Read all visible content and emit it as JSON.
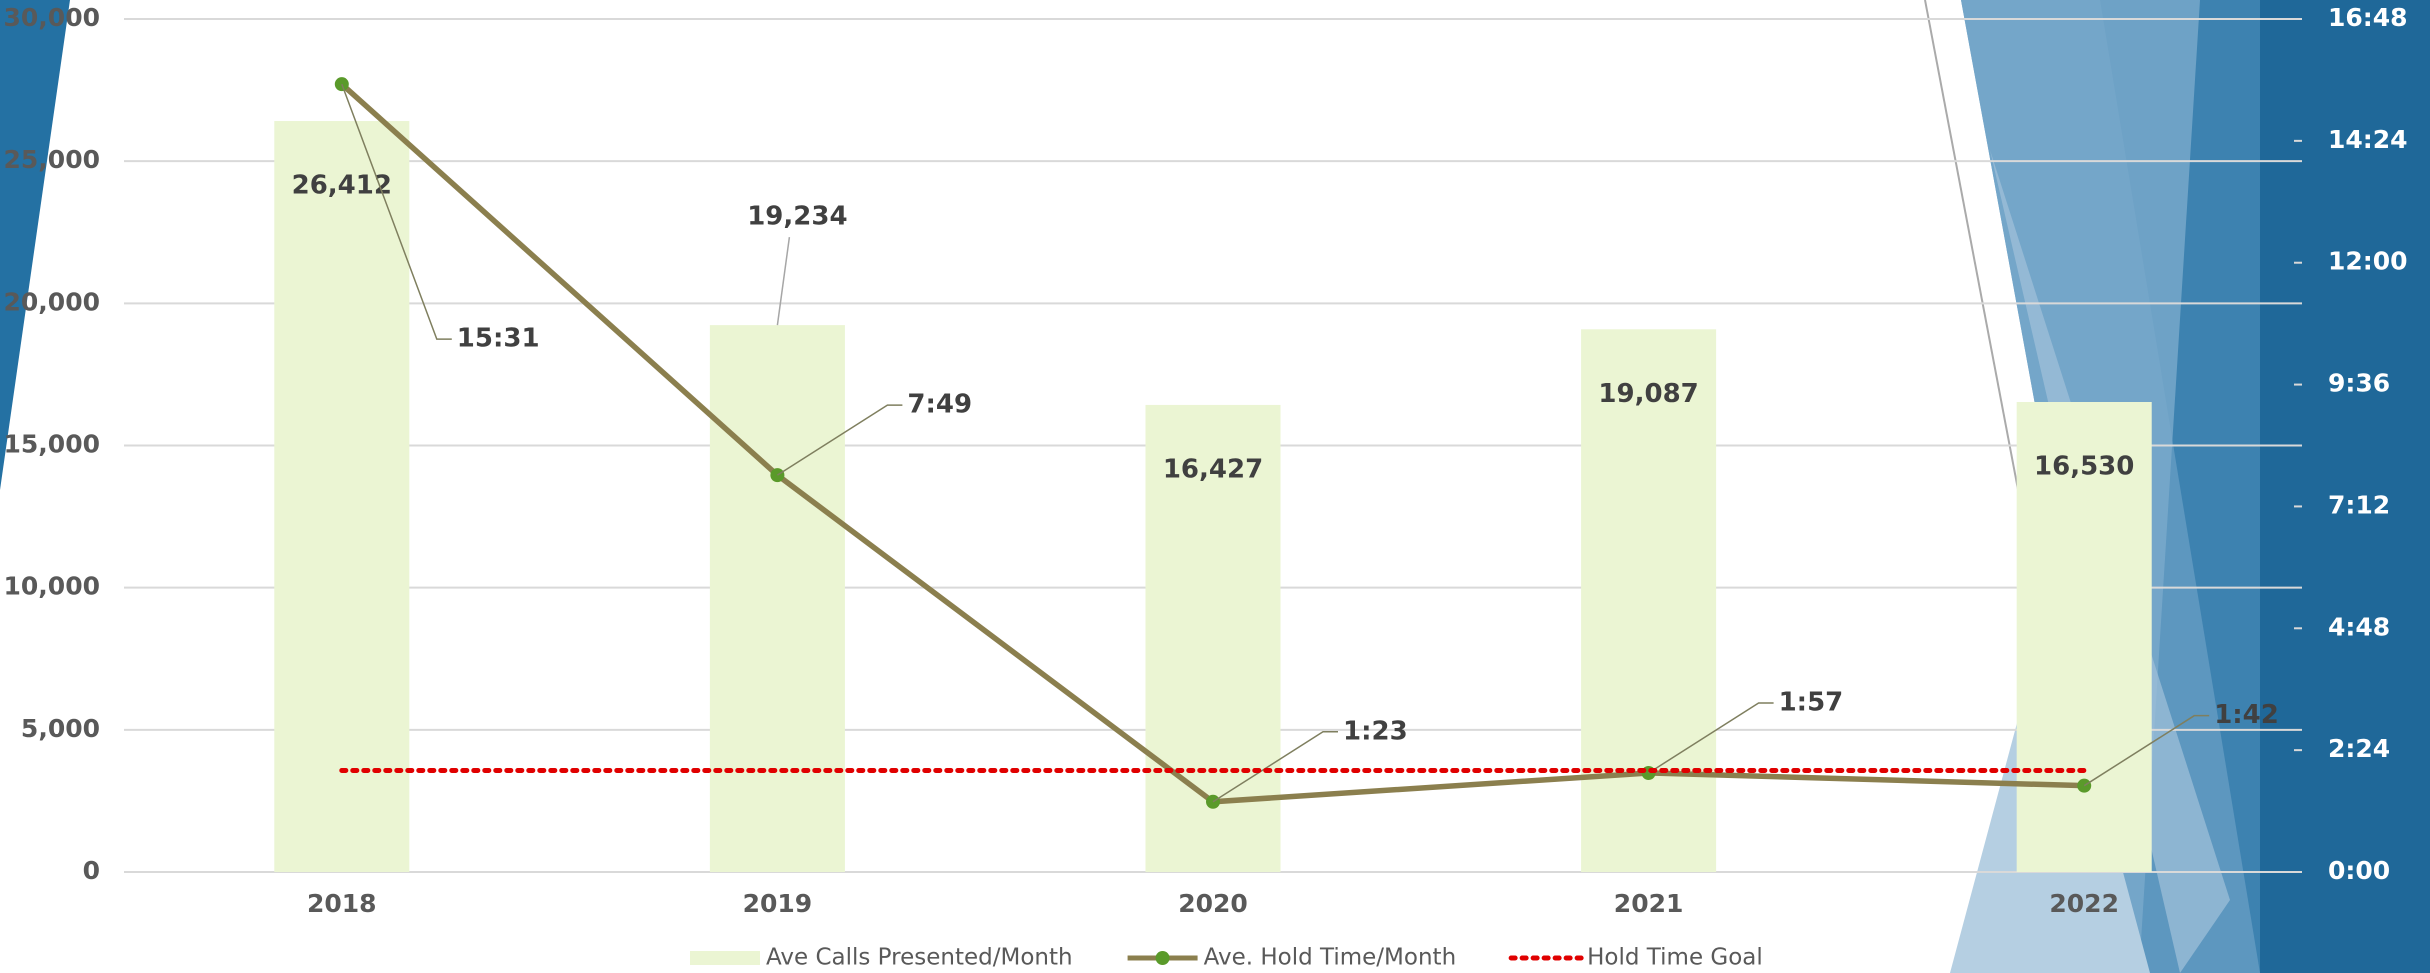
{
  "chart_data": {
    "type": "combo",
    "categories": [
      "2018",
      "2019",
      "2020",
      "2021",
      "2022"
    ],
    "series": [
      {
        "name": "Ave Calls Presented/Month",
        "type": "bar",
        "color": "#ebf5d3",
        "values": [
          26412,
          19234,
          16427,
          19087,
          16530
        ],
        "value_labels": [
          "26,412",
          "19,234",
          "16,427",
          "19,087",
          "16,530"
        ]
      },
      {
        "name": "Ave. Hold Time/Month",
        "type": "line",
        "axis": "y2",
        "color": "#8b7f4e",
        "marker_color": "#5a9a2a",
        "values": [
          931,
          469,
          83,
          117,
          102
        ],
        "value_labels": [
          "15:31",
          "7:49",
          "1:23",
          "1:57",
          "1:42"
        ]
      },
      {
        "name": "Hold Time Goal",
        "type": "line",
        "axis": "y2",
        "color": "#e00000",
        "dash": "dotted",
        "values": [
          120,
          120,
          120,
          120,
          120
        ]
      }
    ],
    "ylim": [
      0,
      30000
    ],
    "yticks": [
      0,
      {
        "value": 5000,
        "label": "5,000"
      },
      {
        "value": 10000,
        "label": "10,000"
      },
      {
        "value": 15000,
        "label": "15,000"
      },
      {
        "value": 20000,
        "label": "20,000"
      },
      {
        "value": 25000,
        "label": "25,000"
      },
      {
        "value": 30000,
        "label": "30,000"
      }
    ],
    "y2lim": [
      0,
      1008
    ],
    "y2ticks": [
      {
        "value": 0,
        "label": "0:00"
      },
      {
        "value": 144,
        "label": "2:24"
      },
      {
        "value": 288,
        "label": "4:48"
      },
      {
        "value": 432,
        "label": "7:12"
      },
      {
        "value": 576,
        "label": "9:36"
      },
      {
        "value": 720,
        "label": "12:00"
      },
      {
        "value": 864,
        "label": "14:24"
      },
      {
        "value": 1008,
        "label": "16:48"
      }
    ],
    "grid": true,
    "legend": "bottom"
  }
}
